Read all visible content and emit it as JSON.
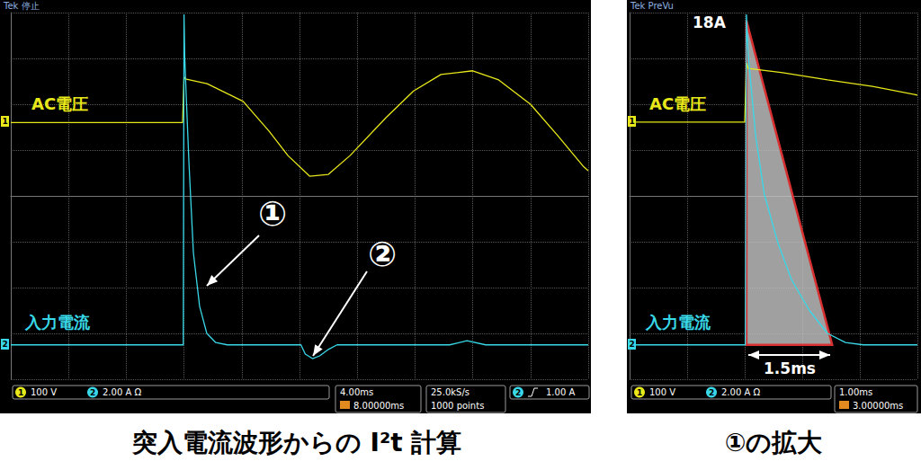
{
  "chart_data": [
    {
      "type": "line",
      "title": "突入電流波形からの I²t 計算",
      "header": "Tek 停止",
      "xlim": [
        0,
        40
      ],
      "xticks": [
        0,
        4,
        8,
        12,
        16,
        20,
        24,
        28,
        32,
        36,
        40
      ],
      "ylim": [
        -4,
        4
      ],
      "yticks": [
        -4,
        -3,
        -2,
        -1,
        0,
        1,
        2,
        3,
        4
      ],
      "grid": true,
      "tick_labels": false,
      "channels": [
        "1",
        "2"
      ],
      "series": [
        {
          "name": "AC電圧",
          "color": "#e8e81a",
          "x": [
            0,
            11.9,
            12.0,
            12.1,
            13.6,
            16.1,
            17.9,
            19.2,
            20.7,
            22.0,
            23.5,
            26.0,
            27.9,
            29.8,
            32.0,
            33.8,
            36.0,
            37.9,
            39.7,
            40
          ],
          "values": [
            1.6,
            1.6,
            2.6,
            2.55,
            2.45,
            2.06,
            1.41,
            0.88,
            0.43,
            0.47,
            0.88,
            1.71,
            2.29,
            2.65,
            2.73,
            2.53,
            2.0,
            1.31,
            0.63,
            0.55
          ]
        },
        {
          "name": "入力電流",
          "color": "#38d8e8",
          "x": [
            0,
            11.95,
            12.0,
            12.05,
            12.15,
            12.34,
            12.65,
            13.08,
            13.58,
            14.2,
            15.0,
            20.1,
            20.4,
            20.9,
            21.4,
            22.0,
            22.6,
            30.4,
            31.6,
            32.9,
            40
          ],
          "values": [
            -3.25,
            -3.25,
            3.96,
            3.04,
            2.2,
            0.73,
            -1.24,
            -2.41,
            -3.0,
            -3.2,
            -3.25,
            -3.25,
            -3.45,
            -3.55,
            -3.49,
            -3.35,
            -3.25,
            -3.25,
            -3.16,
            -3.25,
            -3.25
          ]
        }
      ],
      "annotations": [
        "①",
        "②"
      ],
      "status": {
        "ch1": "100 V",
        "ch2": "2.00 A Ω",
        "timebase": "4.00ms",
        "delay": "8.00000ms",
        "sample_rate": "25.0kS/s",
        "record": "1000 points",
        "trigger": "1.00 A"
      }
    },
    {
      "type": "line",
      "title": "①の拡大",
      "header": "Tek PreVu",
      "xlim": [
        0,
        5
      ],
      "xticks": [
        0,
        1,
        2,
        3,
        4,
        5
      ],
      "ylim": [
        -4,
        4
      ],
      "yticks": [
        -4,
        -3,
        -2,
        -1,
        0,
        1,
        2,
        3,
        4
      ],
      "grid": true,
      "tick_labels": false,
      "channels": [
        "1",
        "2"
      ],
      "series": [
        {
          "type": "area",
          "color": "#d83030",
          "x": [
            2.03,
            2.03,
            3.52
          ],
          "values": [
            3.82,
            -3.25,
            -3.25
          ]
        },
        {
          "name": "AC電圧",
          "color": "#e8e81a",
          "x": [
            0,
            2.0,
            2.03,
            2.06,
            2.66,
            3.44,
            4.22,
            5.0
          ],
          "values": [
            1.61,
            1.61,
            2.9,
            2.78,
            2.69,
            2.53,
            2.39,
            2.2
          ]
        },
        {
          "name": "入力電流",
          "color": "#38d8e8",
          "x": [
            0,
            2.01,
            2.03,
            2.06,
            2.19,
            2.34,
            2.58,
            2.81,
            3.13,
            3.44,
            3.75,
            4.06,
            5.0
          ],
          "values": [
            -3.25,
            -3.25,
            3.96,
            3.08,
            1.31,
            0.04,
            -1.04,
            -1.82,
            -2.51,
            -3.0,
            -3.2,
            -3.25,
            -3.25
          ]
        }
      ],
      "annotations": [
        "18A",
        "1.5ms"
      ],
      "status": {
        "ch1": "100 V",
        "ch2": "2.00 A Ω",
        "timebase": "1.00ms",
        "delay": "3.00000ms"
      }
    }
  ]
}
